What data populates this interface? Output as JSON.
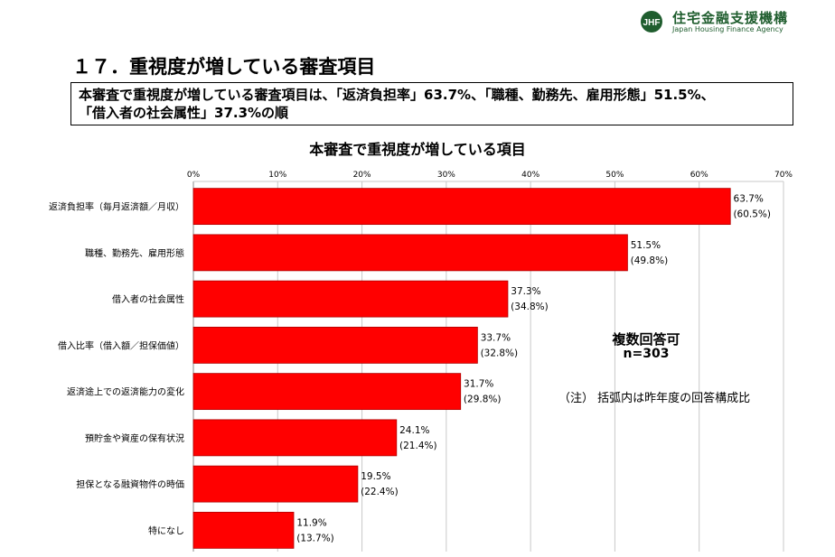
{
  "header": {
    "org_name": "住宅金融支援機構",
    "org_name_en": "Japan Housing Finance Agency",
    "logo_mark": "JHF"
  },
  "page_title": "１７．重視度が増している審査項目",
  "summary": {
    "line1": "本審査で重視度が増している審査項目は、「返済負担率」63.7%、「職種、勤務先、雇用形態」51.5%、",
    "line2": "「借入者の社会属性」37.3%の順"
  },
  "notes": {
    "answer_type": "複数回答可",
    "sample": "n=303",
    "footnote": "（注） 括弧内は昨年度の回答構成比"
  },
  "colors": {
    "bar": "#ff0000",
    "bar_edge": "#b00000",
    "grid": "#c8c8c8",
    "logo": "#1f5d2e"
  },
  "chart_data": {
    "type": "bar",
    "orientation": "horizontal",
    "title": "本審査で重視度が増している項目",
    "xlim": [
      0,
      70
    ],
    "x_ticks": [
      "0%",
      "10%",
      "20%",
      "30%",
      "40%",
      "50%",
      "60%",
      "70%"
    ],
    "grid": true,
    "categories": [
      "返済負担率（毎月返済額／月収）",
      "職種、勤務先、雇用形態",
      "借入者の社会属性",
      "借入比率（借入額／担保価値）",
      "返済途上での返済能力の変化",
      "預貯金や資産の保有状況",
      "担保となる融資物件の時価",
      "特になし"
    ],
    "values": [
      63.7,
      51.5,
      37.3,
      33.7,
      31.7,
      24.1,
      19.5,
      11.9
    ],
    "value_labels": [
      "63.7%",
      "51.5%",
      "37.3%",
      "33.7%",
      "31.7%",
      "24.1%",
      "19.5%",
      "11.9%"
    ],
    "previous_year_labels": [
      "(60.5%)",
      "(49.8%)",
      "(34.8%)",
      "(32.8%)",
      "(29.8%)",
      "(21.4%)",
      "(22.4%)",
      "(13.7%)"
    ]
  }
}
